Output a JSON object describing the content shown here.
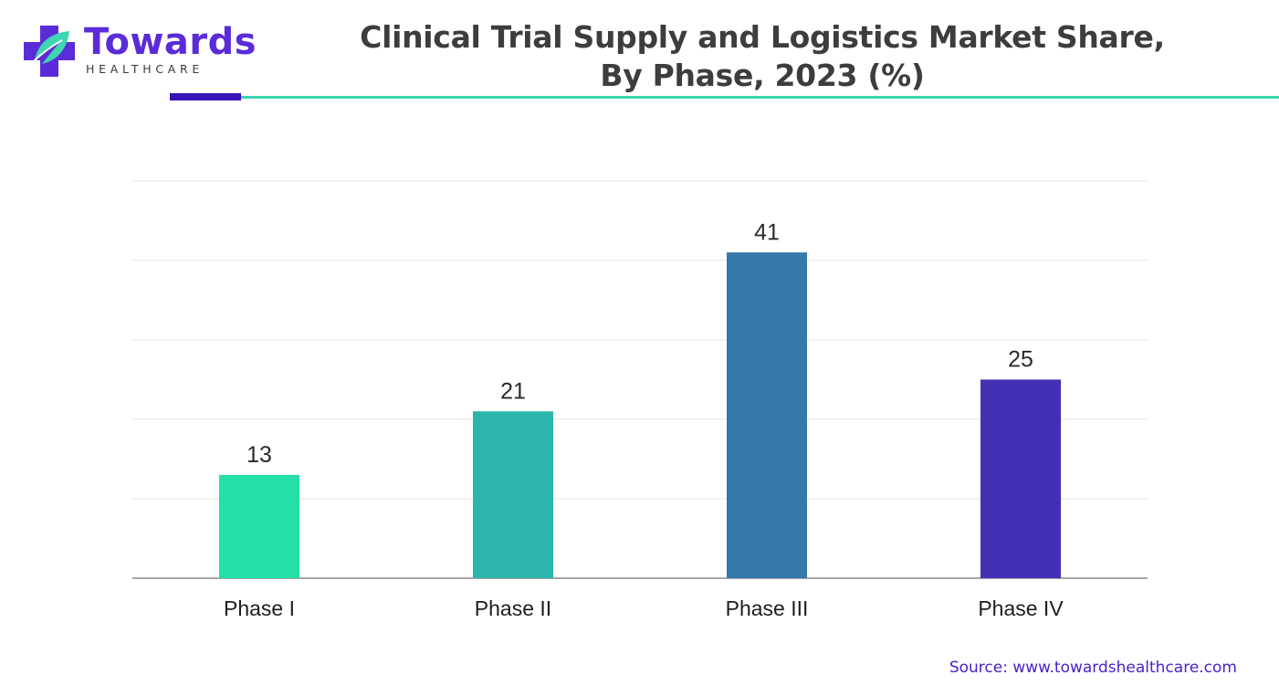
{
  "brand": {
    "name": "Towards",
    "sub": "HEALTHCARE",
    "colors": {
      "primary": "#5b2bd8",
      "accent": "#3dd6b0",
      "dark_accent": "#3a12b8"
    },
    "icon": "medical-cross-leaf-icon"
  },
  "title_lines": [
    "Clinical Trial Supply and Logistics Market Share,",
    "By Phase, 2023 (%)"
  ],
  "source": "Source: www.towardshealthcare.com",
  "chart_data": {
    "type": "bar",
    "title": "Clinical Trial Supply and Logistics Market Share, By Phase, 2023 (%)",
    "categories": [
      "Phase I",
      "Phase II",
      "Phase III",
      "Phase IV"
    ],
    "values": [
      13,
      21,
      41,
      25
    ],
    "data_labels": [
      "13",
      "21",
      "41",
      "25"
    ],
    "colors": [
      "#24dfa8",
      "#2bb5ac",
      "#3479aa",
      "#4231b5"
    ],
    "xlabel": "",
    "ylabel": "",
    "ylim": [
      0,
      50
    ],
    "grid": true,
    "legend": "none"
  }
}
